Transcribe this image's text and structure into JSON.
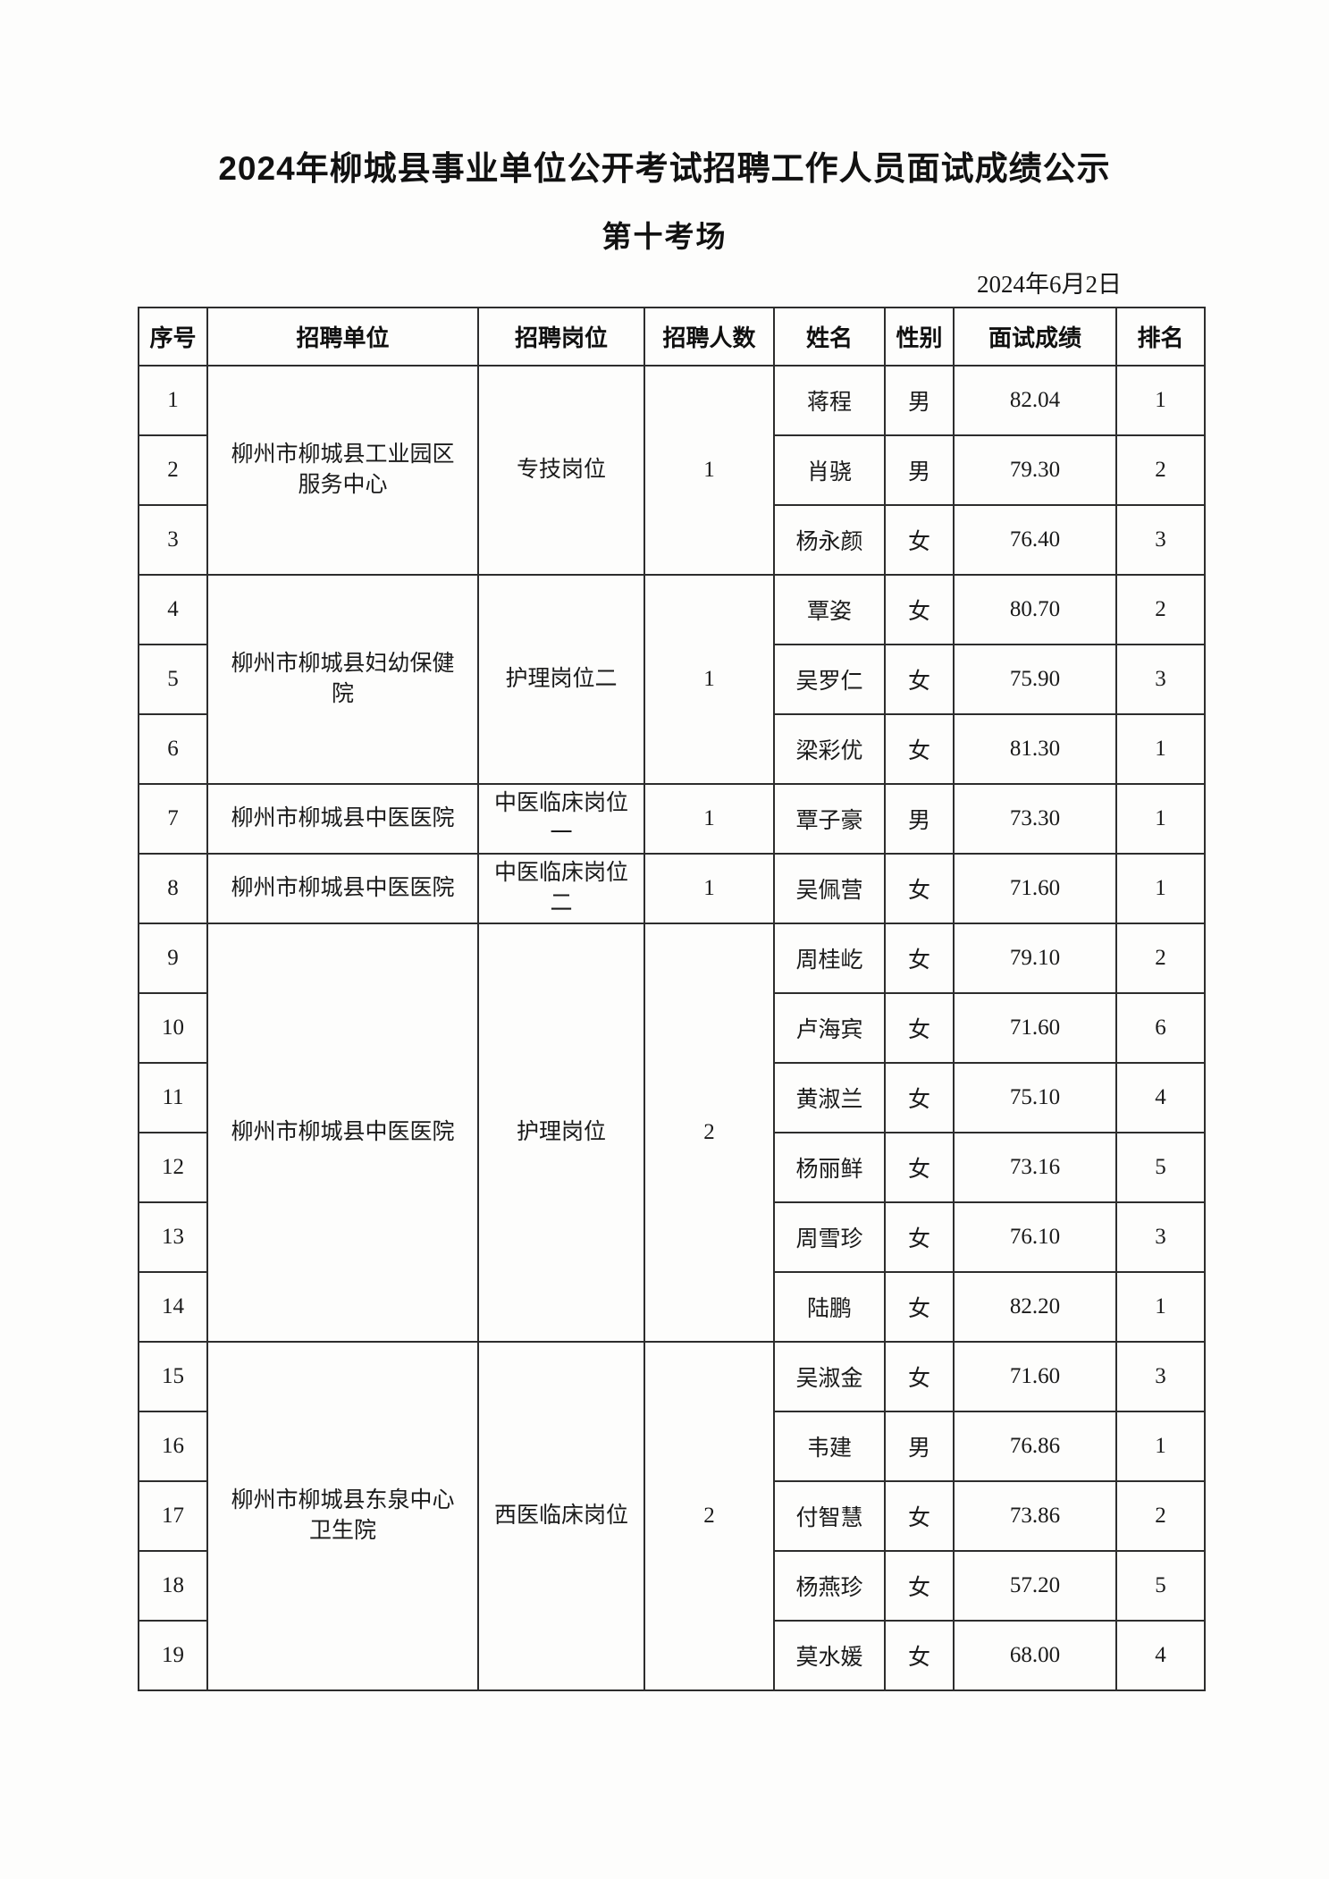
{
  "page": {
    "title": "2024年柳城县事业单位公开考试招聘工作人员面试成绩公示",
    "subtitle": "第十考场",
    "date": "2024年6月2日"
  },
  "table": {
    "headers": [
      "序号",
      "招聘单位",
      "招聘岗位",
      "招聘人数",
      "姓名",
      "性别",
      "面试成绩",
      "排名"
    ],
    "groups": [
      {
        "unit": "柳州市柳城县工业园区\n服务中心",
        "position": "专技岗位",
        "recruit_count": "1",
        "rows": [
          {
            "no": "1",
            "name": "蒋程",
            "gender": "男",
            "score": "82.04",
            "rank": "1"
          },
          {
            "no": "2",
            "name": "肖骁",
            "gender": "男",
            "score": "79.30",
            "rank": "2"
          },
          {
            "no": "3",
            "name": "杨永颜",
            "gender": "女",
            "score": "76.40",
            "rank": "3"
          }
        ]
      },
      {
        "unit": "柳州市柳城县妇幼保健\n院",
        "position": "护理岗位二",
        "recruit_count": "1",
        "rows": [
          {
            "no": "4",
            "name": "覃姿",
            "gender": "女",
            "score": "80.70",
            "rank": "2"
          },
          {
            "no": "5",
            "name": "吴罗仁",
            "gender": "女",
            "score": "75.90",
            "rank": "3"
          },
          {
            "no": "6",
            "name": "梁彩优",
            "gender": "女",
            "score": "81.30",
            "rank": "1"
          }
        ]
      },
      {
        "unit": "柳州市柳城县中医医院",
        "position": "中医临床岗位\n一",
        "recruit_count": "1",
        "rows": [
          {
            "no": "7",
            "name": "覃子豪",
            "gender": "男",
            "score": "73.30",
            "rank": "1"
          }
        ]
      },
      {
        "unit": "柳州市柳城县中医医院",
        "position": "中医临床岗位\n二",
        "recruit_count": "1",
        "rows": [
          {
            "no": "8",
            "name": "吴佩营",
            "gender": "女",
            "score": "71.60",
            "rank": "1"
          }
        ]
      },
      {
        "unit": "柳州市柳城县中医医院",
        "position": "护理岗位",
        "recruit_count": "2",
        "rows": [
          {
            "no": "9",
            "name": "周桂屹",
            "gender": "女",
            "score": "79.10",
            "rank": "2"
          },
          {
            "no": "10",
            "name": "卢海宾",
            "gender": "女",
            "score": "71.60",
            "rank": "6"
          },
          {
            "no": "11",
            "name": "黄淑兰",
            "gender": "女",
            "score": "75.10",
            "rank": "4"
          },
          {
            "no": "12",
            "name": "杨丽鲜",
            "gender": "女",
            "score": "73.16",
            "rank": "5"
          },
          {
            "no": "13",
            "name": "周雪珍",
            "gender": "女",
            "score": "76.10",
            "rank": "3"
          },
          {
            "no": "14",
            "name": "陆鹏",
            "gender": "女",
            "score": "82.20",
            "rank": "1"
          }
        ]
      },
      {
        "unit": "柳州市柳城县东泉中心\n卫生院",
        "position": "西医临床岗位",
        "recruit_count": "2",
        "rows": [
          {
            "no": "15",
            "name": "吴淑金",
            "gender": "女",
            "score": "71.60",
            "rank": "3"
          },
          {
            "no": "16",
            "name": "韦建",
            "gender": "男",
            "score": "76.86",
            "rank": "1"
          },
          {
            "no": "17",
            "name": "付智慧",
            "gender": "女",
            "score": "73.86",
            "rank": "2"
          },
          {
            "no": "18",
            "name": "杨燕珍",
            "gender": "女",
            "score": "57.20",
            "rank": "5"
          },
          {
            "no": "19",
            "name": "莫水媛",
            "gender": "女",
            "score": "68.00",
            "rank": "4"
          }
        ]
      }
    ]
  }
}
